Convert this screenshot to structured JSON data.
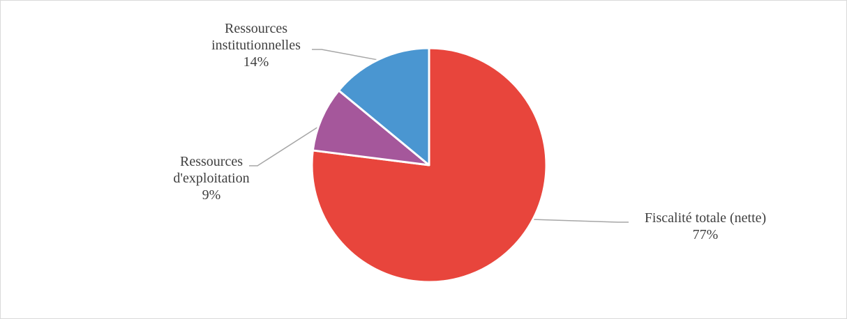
{
  "chart_data": {
    "type": "pie",
    "title": "",
    "series": [
      {
        "values": [
          77,
          9,
          14
        ]
      }
    ],
    "categories": [
      "Fiscalité totale (nette)",
      "Ressources d'exploitation",
      "Ressources institutionnelles"
    ],
    "slices": [
      {
        "label_lines": [
          "Fiscalité totale (nette)"
        ],
        "value": 77,
        "percent_label": "77%",
        "color": "#e8453c"
      },
      {
        "label_lines": [
          "Ressources",
          "d'exploitation"
        ],
        "value": 9,
        "percent_label": "9%",
        "color": "#a5579b"
      },
      {
        "label_lines": [
          "Ressources",
          "institutionnelles"
        ],
        "value": 14,
        "percent_label": "14%",
        "color": "#4a96d1"
      }
    ],
    "start_angle": "12 o'clock",
    "direction": "clockwise",
    "legend": "none",
    "data_labels": "outside with leader lines"
  }
}
